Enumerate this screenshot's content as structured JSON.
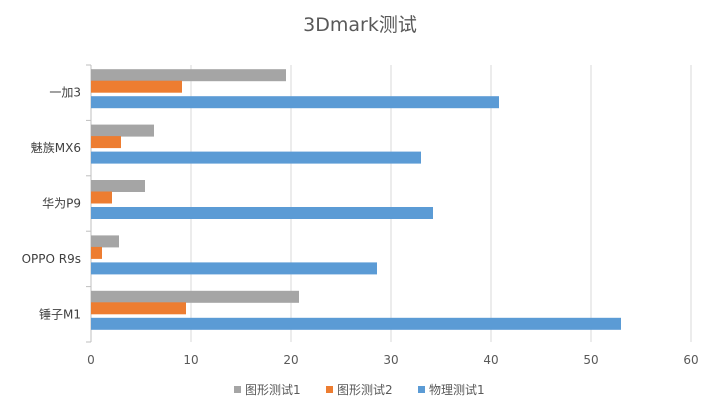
{
  "chart_data": {
    "type": "bar",
    "orientation": "horizontal",
    "title": "3Dmark测试",
    "categories": [
      "一加3",
      "魅族MX6",
      "华为P9",
      "OPPO R9s",
      "锤子M1"
    ],
    "series": [
      {
        "name": "图形测试1",
        "color": "#a5a5a5",
        "values": [
          19.5,
          6.3,
          5.4,
          2.8,
          20.8
        ]
      },
      {
        "name": "图形测试2",
        "color": "#ed7d31",
        "values": [
          9.1,
          3.0,
          2.1,
          1.1,
          9.5
        ]
      },
      {
        "name": "物理测试1",
        "color": "#5b9bd5",
        "values": [
          40.8,
          33.0,
          34.2,
          28.6,
          53.0
        ]
      }
    ],
    "xlim": [
      0,
      60
    ],
    "xticks": [
      0,
      10,
      20,
      30,
      40,
      50,
      60
    ],
    "grid": true,
    "legend_position": "bottom"
  }
}
